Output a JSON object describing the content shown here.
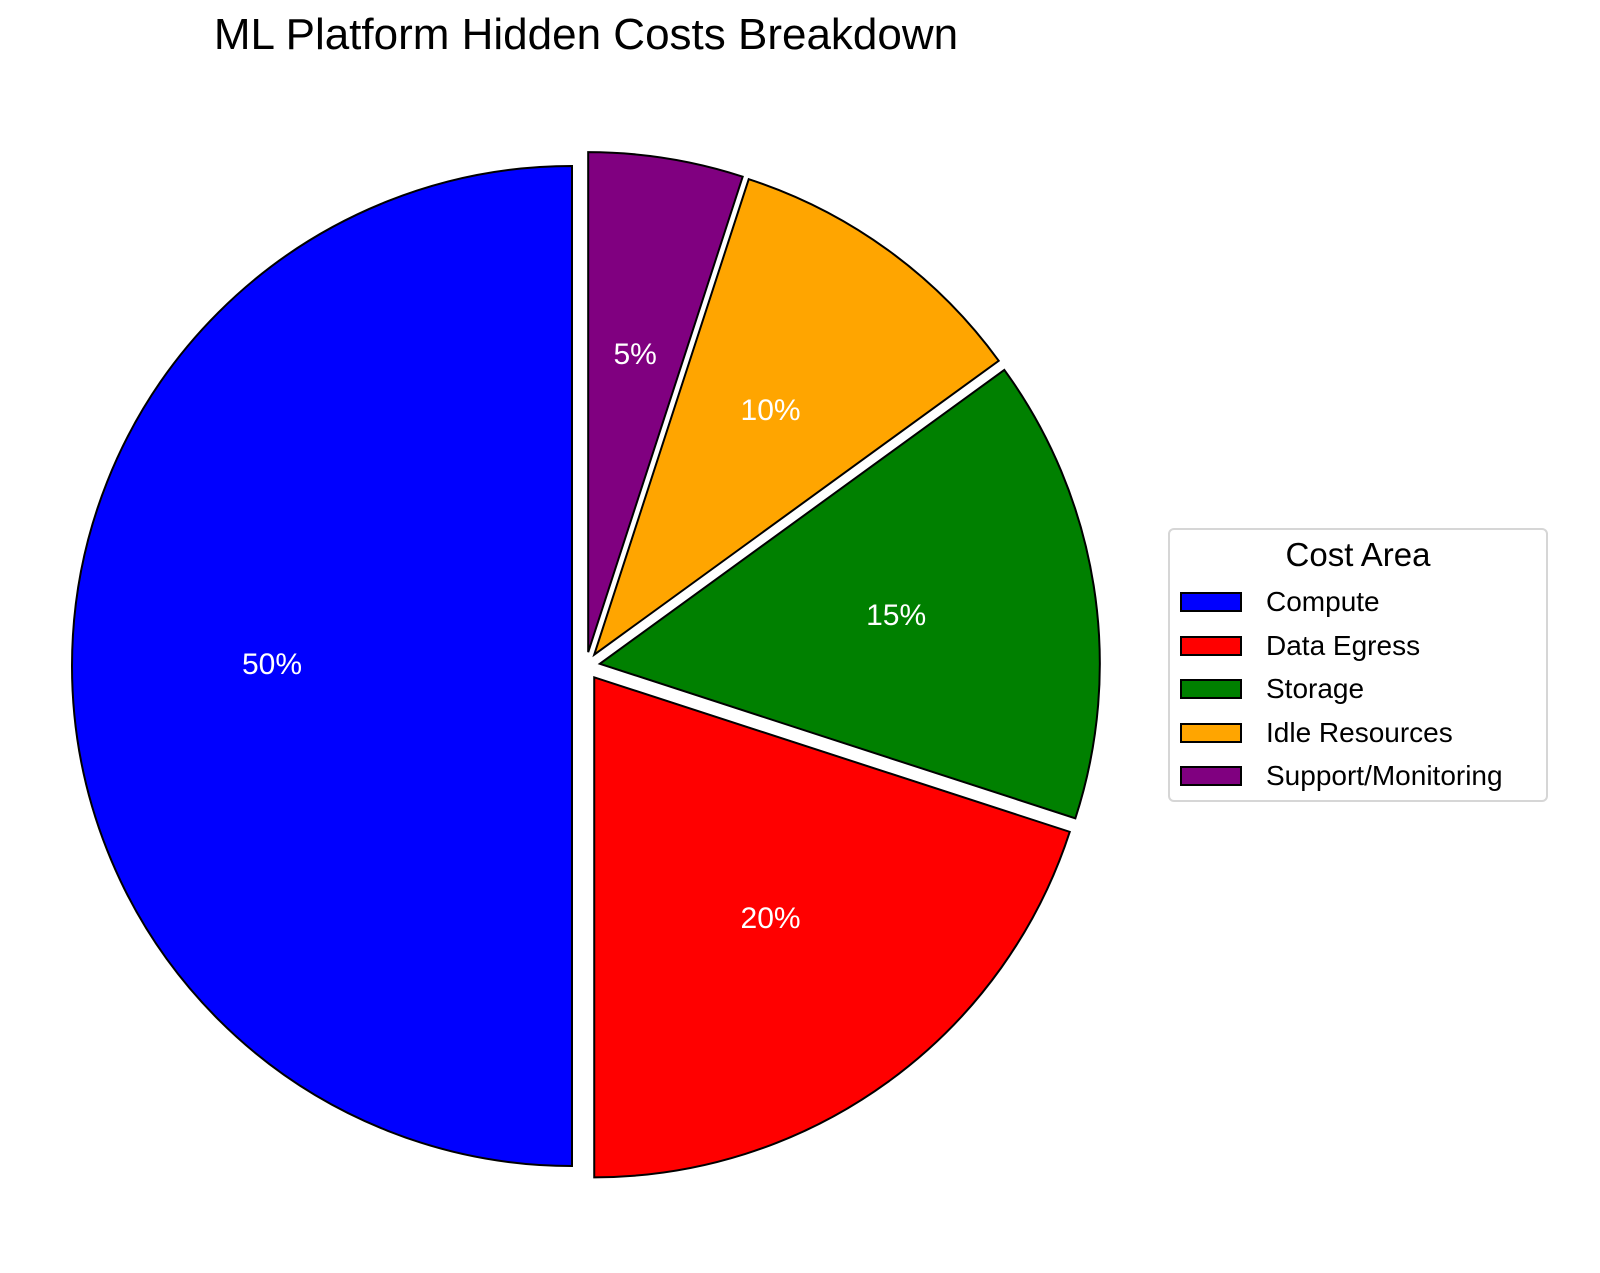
{
  "chart_data": {
    "type": "pie",
    "title": "ML Platform Hidden Costs Breakdown",
    "categories": [
      "Compute",
      "Data Egress",
      "Storage",
      "Idle Resources",
      "Support/Monitoring"
    ],
    "values": [
      50,
      20,
      15,
      10,
      5
    ],
    "labels": [
      "50%",
      "20%",
      "15%",
      "10%",
      "5%"
    ],
    "colors": [
      "#0000ff",
      "#ff0000",
      "#008000",
      "#ffa500",
      "#800080"
    ],
    "start_angle": 90,
    "direction": "counterclockwise",
    "explode": [
      0.03,
      0.03,
      0.03,
      0.03,
      0.03
    ],
    "edge_color": "#000000",
    "legend": {
      "title": "Cost Area",
      "position": "center right",
      "entries": [
        "Compute",
        "Data Egress",
        "Storage",
        "Idle Resources",
        "Support/Monitoring"
      ]
    }
  },
  "title": "ML Platform Hidden Costs Breakdown",
  "legend": {
    "title": "Cost Area",
    "items": [
      {
        "label": "Compute",
        "color": "#0000ff"
      },
      {
        "label": "Data Egress",
        "color": "#ff0000"
      },
      {
        "label": "Storage",
        "color": "#008000"
      },
      {
        "label": "Idle Resources",
        "color": "#ffa500"
      },
      {
        "label": "Support/Monitoring",
        "color": "#800080"
      }
    ]
  }
}
